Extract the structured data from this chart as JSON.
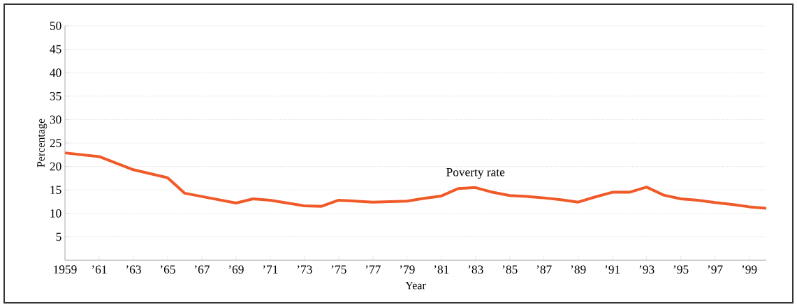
{
  "chart_data": {
    "type": "line",
    "xlabel": "Year",
    "ylabel": "Percentage",
    "x": [
      1959,
      1961,
      1963,
      1965,
      1966,
      1967,
      1968,
      1969,
      1970,
      1971,
      1972,
      1973,
      1974,
      1975,
      1976,
      1977,
      1978,
      1979,
      1980,
      1981,
      1982,
      1983,
      1984,
      1985,
      1986,
      1987,
      1988,
      1989,
      1990,
      1991,
      1992,
      1993,
      1994,
      1995,
      1996,
      1997,
      1998,
      1999,
      2000
    ],
    "series": [
      {
        "name": "Poverty rate",
        "color": "#f05a28",
        "values": [
          22.9,
          22.1,
          19.3,
          17.6,
          14.3,
          13.6,
          12.9,
          12.2,
          13.1,
          12.8,
          12.2,
          11.6,
          11.5,
          12.8,
          12.6,
          12.4,
          12.5,
          12.6,
          13.2,
          13.7,
          15.3,
          15.5,
          14.5,
          13.8,
          13.6,
          13.3,
          12.9,
          12.4,
          13.5,
          14.5,
          14.5,
          15.6,
          13.9,
          13.1,
          12.8,
          12.3,
          11.9,
          11.4,
          11.1
        ]
      }
    ],
    "xlim": [
      1959,
      2000
    ],
    "xticks": [
      1959,
      {
        "value": 1961,
        "label": "’61"
      },
      {
        "value": 1963,
        "label": "’63"
      },
      {
        "value": 1965,
        "label": "’65"
      },
      {
        "value": 1967,
        "label": "’67"
      },
      {
        "value": 1969,
        "label": "’69"
      },
      {
        "value": 1971,
        "label": "’71"
      },
      {
        "value": 1973,
        "label": "’73"
      },
      {
        "value": 1975,
        "label": "’75"
      },
      {
        "value": 1977,
        "label": "’77"
      },
      {
        "value": 1979,
        "label": "’79"
      },
      {
        "value": 1981,
        "label": "’81"
      },
      {
        "value": 1983,
        "label": "’83"
      },
      {
        "value": 1985,
        "label": "’85"
      },
      {
        "value": 1987,
        "label": "’87"
      },
      {
        "value": 1989,
        "label": "’89"
      },
      {
        "value": 1991,
        "label": "’91"
      },
      {
        "value": 1993,
        "label": "’93"
      },
      {
        "value": 1995,
        "label": "’95"
      },
      {
        "value": 1997,
        "label": "’97"
      },
      {
        "value": 1999,
        "label": "’99"
      }
    ],
    "ylim": [
      0,
      50
    ],
    "yticks": [
      5,
      10,
      15,
      20,
      25,
      30,
      35,
      40,
      45,
      50
    ],
    "grid": "y",
    "marker": "none",
    "line_style": "solid"
  }
}
